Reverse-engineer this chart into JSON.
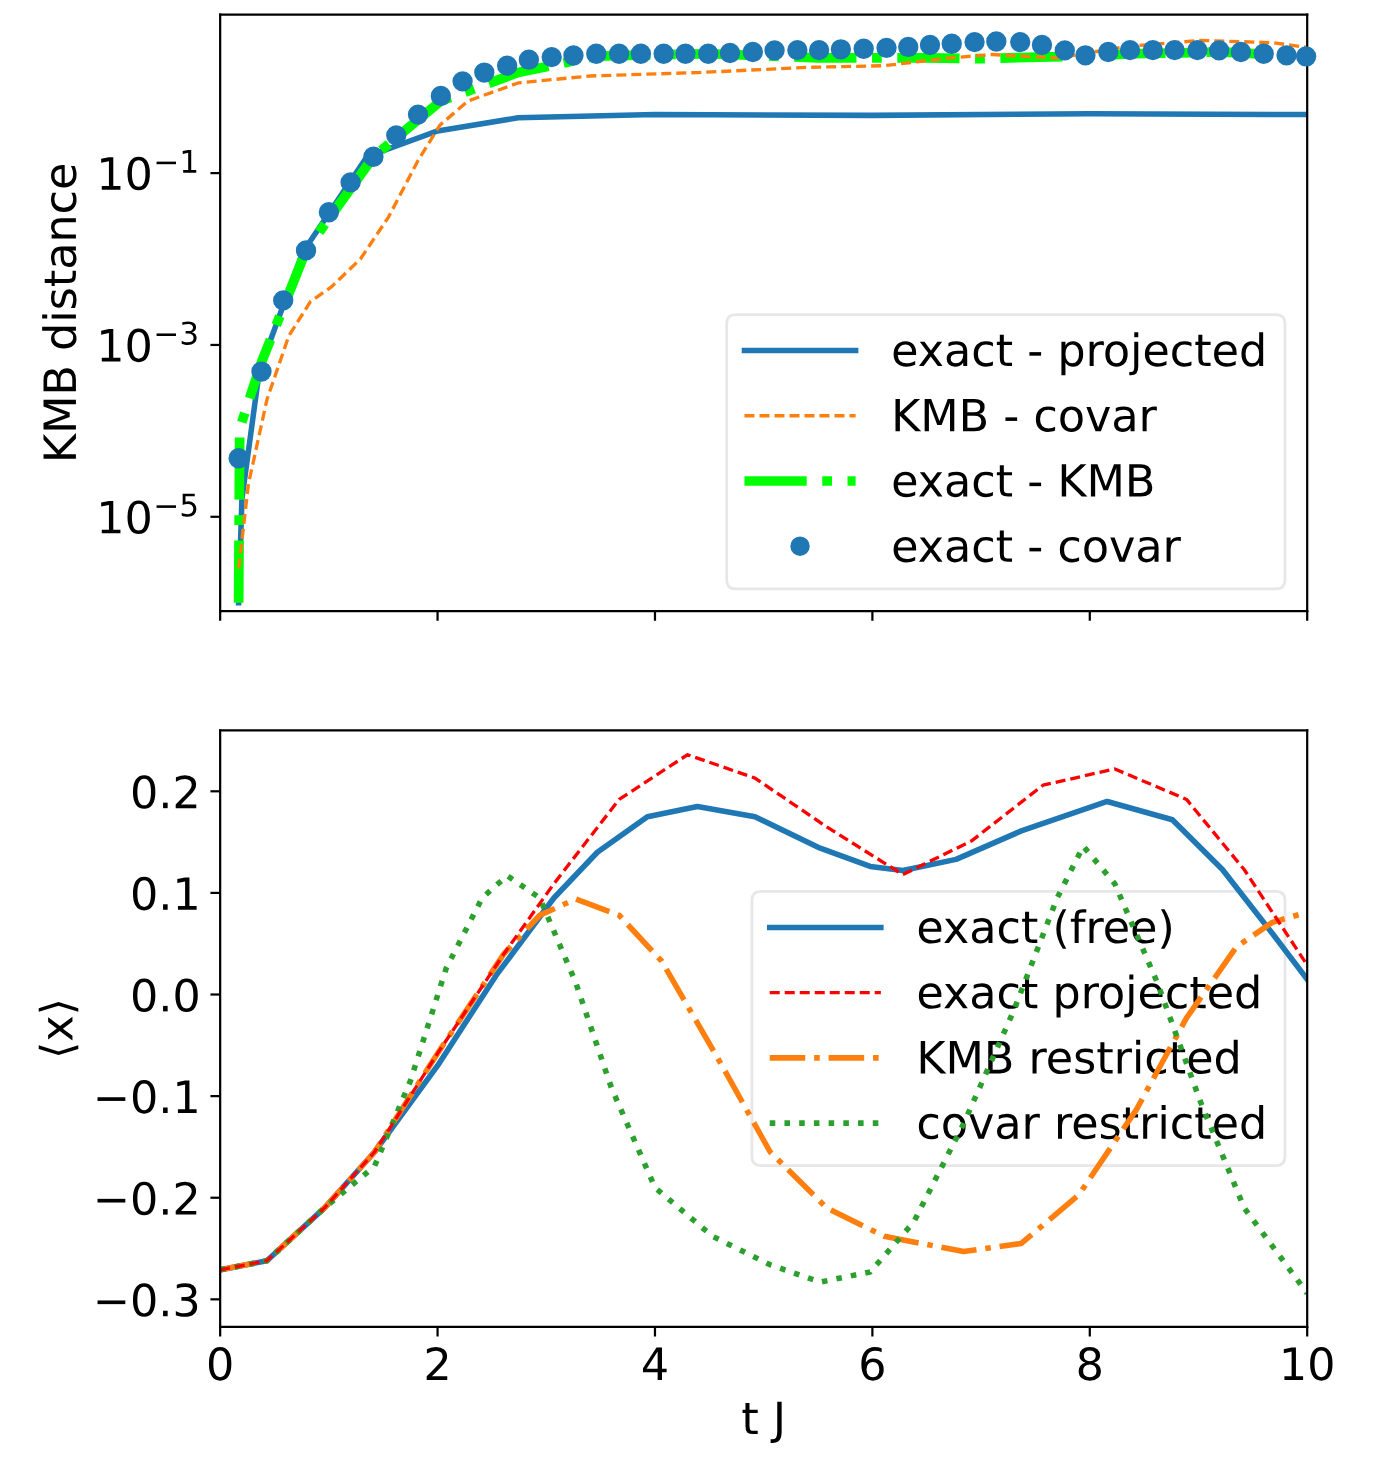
{
  "chart_data": [
    {
      "type": "line",
      "ylabel": "KMB distance",
      "log": "y",
      "xlim": [
        0,
        10
      ],
      "ylim": [
        8e-07,
        7
      ],
      "xticks": [
        0,
        2,
        4,
        6,
        8,
        10
      ],
      "yticks": [
        {
          "value": 1e-05,
          "label": "10$^{−5}$"
        },
        {
          "value": 0.001,
          "label": "10$^{−3}$"
        },
        {
          "value": 0.1,
          "label": "10$^{−1}$"
        }
      ],
      "tick_labels": "y",
      "legend": "lower right",
      "grid": false,
      "series": [
        {
          "name": "exact - projected",
          "color": "#1f77b4",
          "line_style": "solid",
          "x": [
            0.17,
            0.2,
            0.36,
            0.76,
            1.35,
            2.0,
            2.74,
            4,
            6,
            8,
            10
          ],
          "values": [
            1e-06,
            1.6e-05,
            0.0005,
            0.012,
            0.155,
            0.31,
            0.44,
            0.48,
            0.47,
            0.49,
            0.48
          ]
        },
        {
          "name": "KMB - covar",
          "color": "#ff7f0e",
          "line_style": "dashed",
          "x": [
            0.17,
            0.26,
            0.43,
            0.63,
            0.83,
            1.02,
            1.29,
            1.55,
            1.82,
            2.02,
            2.28,
            2.74,
            3.4,
            4.4,
            5.39,
            6.11,
            6.71,
            7.1,
            7.7,
            8.36,
            9.02,
            9.68,
            10
          ],
          "values": [
            2.5e-06,
            2.4e-05,
            0.00023,
            0.00126,
            0.0032,
            0.0047,
            0.01,
            0.031,
            0.14,
            0.36,
            0.69,
            1.12,
            1.35,
            1.48,
            1.7,
            1.78,
            2.19,
            2.4,
            2.19,
            3.0,
            3.5,
            3.3,
            2.9
          ]
        },
        {
          "name": "exact - KMB",
          "color": "#00ff00",
          "line_style": "dashdot",
          "x": [
            0.17,
            0.18,
            0.38,
            0.79,
            1.41,
            2.03,
            2.74,
            3.46,
            4.5,
            5.5,
            6.5,
            7.0,
            7.9,
            8.4,
            9.2,
            10
          ],
          "values": [
            1e-06,
            0.000107,
            0.00063,
            0.0126,
            0.155,
            0.69,
            1.48,
            2.3,
            2.45,
            2.2,
            2.2,
            2.15,
            2.3,
            2.45,
            2.57,
            2.28
          ]
        },
        {
          "name": "exact - covar",
          "type": "scatter",
          "marker": "circle",
          "color": "#1f77b4",
          "x": [
            0.17,
            0.38,
            0.58,
            0.79,
            1.0,
            1.2,
            1.41,
            1.62,
            1.82,
            2.03,
            2.23,
            2.43,
            2.64,
            2.84,
            3.05,
            3.25,
            3.46,
            3.67,
            3.87,
            4.08,
            4.28,
            4.49,
            4.69,
            4.9,
            5.1,
            5.31,
            5.51,
            5.71,
            5.92,
            6.13,
            6.33,
            6.53,
            6.73,
            6.94,
            7.14,
            7.36,
            7.56,
            7.77,
            7.96,
            8.17,
            8.37,
            8.58,
            8.78,
            8.99,
            9.19,
            9.39,
            9.6,
            9.81,
            9.99
          ],
          "values": [
            4.8e-05,
            0.00049,
            0.0033,
            0.0126,
            0.035,
            0.078,
            0.155,
            0.275,
            0.48,
            0.79,
            1.17,
            1.48,
            1.78,
            2.09,
            2.24,
            2.34,
            2.45,
            2.45,
            2.45,
            2.45,
            2.45,
            2.45,
            2.5,
            2.57,
            2.68,
            2.7,
            2.7,
            2.76,
            2.8,
            2.87,
            2.94,
            3.1,
            3.2,
            3.35,
            3.4,
            3.35,
            3.1,
            2.68,
            2.35,
            2.57,
            2.7,
            2.7,
            2.7,
            2.7,
            2.68,
            2.57,
            2.45,
            2.35,
            2.28
          ]
        }
      ]
    },
    {
      "type": "line",
      "xlabel": "t J",
      "ylabel": "⟨x⟩",
      "xlim": [
        0,
        10
      ],
      "ylim": [
        -0.327,
        0.26
      ],
      "xticks": [
        0,
        2,
        4,
        6,
        8,
        10
      ],
      "yticks": [
        {
          "value": -0.3,
          "label": "−0.3"
        },
        {
          "value": -0.2,
          "label": "−0.2"
        },
        {
          "value": -0.1,
          "label": "−0.1"
        },
        {
          "value": 0,
          "label": "0.0"
        },
        {
          "value": 0.1,
          "label": "0.1"
        },
        {
          "value": 0.2,
          "label": "0.2"
        }
      ],
      "legend": "center right",
      "grid": false,
      "series": [
        {
          "name": "exact (free)",
          "color": "#1f77b4",
          "line_style": "solid",
          "x": [
            0,
            0.43,
            0.96,
            1.42,
            2.0,
            2.54,
            3.07,
            3.47,
            3.93,
            4.39,
            4.92,
            5.52,
            5.98,
            6.28,
            6.77,
            7.37,
            8.16,
            8.76,
            9.22,
            9.68,
            10
          ],
          "values": [
            -0.271,
            -0.262,
            -0.21,
            -0.155,
            -0.07,
            0.019,
            0.095,
            0.14,
            0.175,
            0.185,
            0.175,
            0.144,
            0.126,
            0.122,
            0.133,
            0.161,
            0.19,
            0.172,
            0.123,
            0.06,
            0.015
          ]
        },
        {
          "name": "exact projected",
          "color": "#ff0000",
          "line_style": "dashed",
          "x": [
            0,
            0.43,
            0.96,
            1.42,
            2.0,
            2.61,
            3.07,
            3.67,
            4.3,
            4.92,
            5.58,
            6.28,
            6.91,
            7.57,
            8.23,
            8.89,
            9.42,
            10
          ],
          "values": [
            -0.271,
            -0.262,
            -0.21,
            -0.155,
            -0.058,
            0.04,
            0.109,
            0.192,
            0.236,
            0.213,
            0.165,
            0.118,
            0.151,
            0.206,
            0.222,
            0.192,
            0.123,
            0.029
          ]
        },
        {
          "name": "KMB restricted",
          "color": "#ff7f0e",
          "line_style": "dashdot",
          "x": [
            0,
            0.43,
            0.96,
            1.42,
            2.0,
            2.61,
            2.94,
            3.27,
            3.67,
            4.06,
            4.59,
            5.06,
            5.58,
            6.11,
            6.84,
            7.37,
            7.9,
            8.43,
            8.89,
            9.35,
            9.68,
            10
          ],
          "values": [
            -0.271,
            -0.262,
            -0.21,
            -0.155,
            -0.058,
            0.04,
            0.078,
            0.094,
            0.078,
            0.033,
            -0.065,
            -0.155,
            -0.21,
            -0.238,
            -0.253,
            -0.245,
            -0.197,
            -0.113,
            -0.023,
            0.047,
            0.071,
            0.081
          ]
        },
        {
          "name": "covar restricted",
          "color": "#2ca02c",
          "line_style": "dotted",
          "x": [
            0,
            0.43,
            0.96,
            1.42,
            1.75,
            2.08,
            2.41,
            2.64,
            2.94,
            3.27,
            3.6,
            4.0,
            4.53,
            5.06,
            5.52,
            5.98,
            6.38,
            6.84,
            7.3,
            7.7,
            7.94,
            8.23,
            8.62,
            9.02,
            9.42,
            10
          ],
          "values": [
            -0.271,
            -0.262,
            -0.21,
            -0.169,
            -0.085,
            0.026,
            0.095,
            0.117,
            0.095,
            0.012,
            -0.092,
            -0.19,
            -0.238,
            -0.266,
            -0.283,
            -0.273,
            -0.224,
            -0.127,
            -0.016,
            0.095,
            0.146,
            0.109,
            0.012,
            -0.106,
            -0.21,
            -0.294
          ]
        }
      ]
    }
  ]
}
